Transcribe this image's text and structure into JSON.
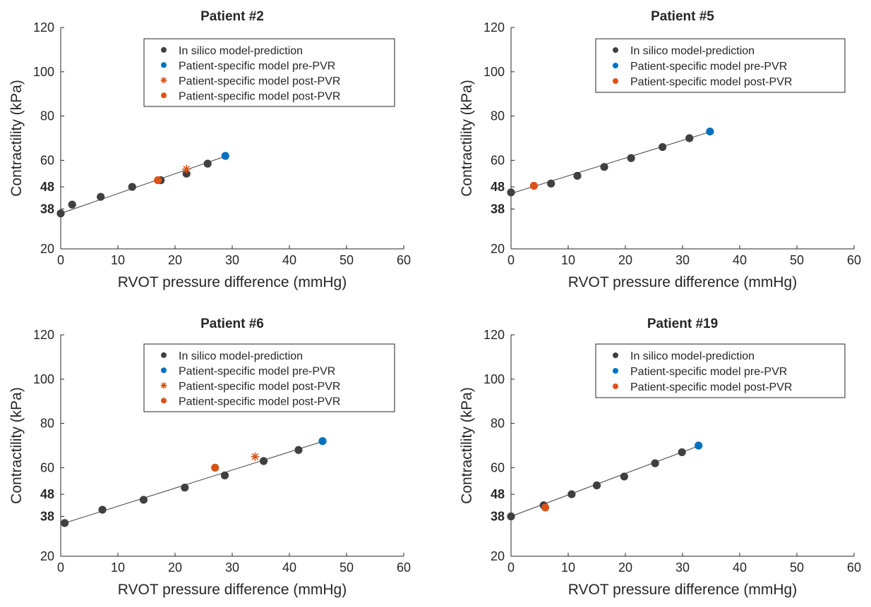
{
  "colors": {
    "model": "#404040",
    "pre": "#0072BD",
    "post": "#D95319",
    "line": "#404040",
    "axis": "#262626"
  },
  "chart_data": [
    {
      "type": "scatter",
      "title": "Patient #2",
      "xlabel": "RVOT pressure difference (mmHg)",
      "ylabel": "Contractility (kPa)",
      "xlim": [
        0,
        60
      ],
      "ylim": [
        20,
        120
      ],
      "xticks": [
        0,
        10,
        20,
        30,
        40,
        50,
        60
      ],
      "yticks": [
        20,
        38,
        48,
        60,
        80,
        100,
        120
      ],
      "bold_yticks": [
        38,
        48
      ],
      "legend_position": "top-right",
      "fit_line": {
        "x": [
          0,
          29
        ],
        "y": [
          36,
          62
        ]
      },
      "series": [
        {
          "name": "In silico model-prediction",
          "marker": "dot",
          "color_key": "model",
          "x": [
            0,
            2,
            7,
            12.5,
            17.5,
            22,
            25.7
          ],
          "y": [
            36,
            40,
            43.5,
            48,
            51,
            54,
            58.5
          ]
        },
        {
          "name": "Patient-specific model pre-PVR",
          "marker": "dot",
          "color_key": "pre",
          "x": [
            28.8
          ],
          "y": [
            62
          ]
        },
        {
          "name": "Patient-specific model post-PVR",
          "marker": "star",
          "color_key": "post",
          "x": [
            22
          ],
          "y": [
            56
          ]
        },
        {
          "name": "Patient-specific model post-PVR",
          "marker": "dot",
          "color_key": "post",
          "x": [
            17
          ],
          "y": [
            51
          ]
        }
      ]
    },
    {
      "type": "scatter",
      "title": "Patient #5",
      "xlabel": "RVOT pressure difference (mmHg)",
      "ylabel": "Contractility (kPa)",
      "xlim": [
        0,
        60
      ],
      "ylim": [
        20,
        120
      ],
      "xticks": [
        0,
        10,
        20,
        30,
        40,
        50,
        60
      ],
      "yticks": [
        20,
        38,
        48,
        60,
        80,
        100,
        120
      ],
      "bold_yticks": [
        38,
        48
      ],
      "legend_position": "top-right",
      "fit_line": {
        "x": [
          0,
          35
        ],
        "y": [
          45,
          73
        ]
      },
      "series": [
        {
          "name": "In silico model-prediction",
          "marker": "dot",
          "color_key": "model",
          "x": [
            0,
            7,
            11.6,
            16.3,
            21,
            26.5,
            31.2
          ],
          "y": [
            45.5,
            49.5,
            53,
            57,
            61,
            66,
            70
          ]
        },
        {
          "name": "Patient-specific model pre-PVR",
          "marker": "dot",
          "color_key": "pre",
          "x": [
            34.8
          ],
          "y": [
            73
          ]
        },
        {
          "name": "Patient-specific model post-PVR",
          "marker": "dot",
          "color_key": "post",
          "x": [
            4
          ],
          "y": [
            48.5
          ]
        }
      ]
    },
    {
      "type": "scatter",
      "title": "Patient #6",
      "xlabel": "RVOT pressure difference (mmHg)",
      "ylabel": "Contractility (kPa)",
      "xlim": [
        0,
        60
      ],
      "ylim": [
        20,
        120
      ],
      "xticks": [
        0,
        10,
        20,
        30,
        40,
        50,
        60
      ],
      "yticks": [
        20,
        38,
        48,
        60,
        80,
        100,
        120
      ],
      "bold_yticks": [
        38,
        48
      ],
      "legend_position": "top-right",
      "fit_line": {
        "x": [
          0.7,
          46
        ],
        "y": [
          35,
          72
        ]
      },
      "series": [
        {
          "name": "In silico model-prediction",
          "marker": "dot",
          "color_key": "model",
          "x": [
            0.7,
            7.3,
            14.5,
            21.7,
            28.7,
            35.5,
            41.6
          ],
          "y": [
            35,
            41,
            45.5,
            51,
            56.5,
            63,
            68
          ]
        },
        {
          "name": "Patient-specific model pre-PVR",
          "marker": "dot",
          "color_key": "pre",
          "x": [
            45.8
          ],
          "y": [
            72
          ]
        },
        {
          "name": "Patient-specific model post-PVR",
          "marker": "star",
          "color_key": "post",
          "x": [
            34
          ],
          "y": [
            65
          ]
        },
        {
          "name": "Patient-specific model post-PVR",
          "marker": "dot",
          "color_key": "post",
          "x": [
            27
          ],
          "y": [
            60
          ]
        }
      ]
    },
    {
      "type": "scatter",
      "title": "Patient #19",
      "xlabel": "RVOT pressure difference (mmHg)",
      "ylabel": "Contractility (kPa)",
      "xlim": [
        0,
        60
      ],
      "ylim": [
        20,
        120
      ],
      "xticks": [
        0,
        10,
        20,
        30,
        40,
        50,
        60
      ],
      "yticks": [
        20,
        38,
        48,
        60,
        80,
        100,
        120
      ],
      "bold_yticks": [
        38,
        48
      ],
      "legend_position": "top-right",
      "fit_line": {
        "x": [
          0,
          33
        ],
        "y": [
          38,
          70
        ]
      },
      "series": [
        {
          "name": "In silico model-prediction",
          "marker": "dot",
          "color_key": "model",
          "x": [
            0,
            5.7,
            10.6,
            15,
            19.8,
            25.2,
            29.9
          ],
          "y": [
            38,
            43,
            48,
            52,
            56,
            62,
            67
          ]
        },
        {
          "name": "Patient-specific model pre-PVR",
          "marker": "dot",
          "color_key": "pre",
          "x": [
            32.8
          ],
          "y": [
            70
          ]
        },
        {
          "name": "Patient-specific model post-PVR",
          "marker": "dot",
          "color_key": "post",
          "x": [
            6
          ],
          "y": [
            42
          ]
        }
      ]
    }
  ]
}
